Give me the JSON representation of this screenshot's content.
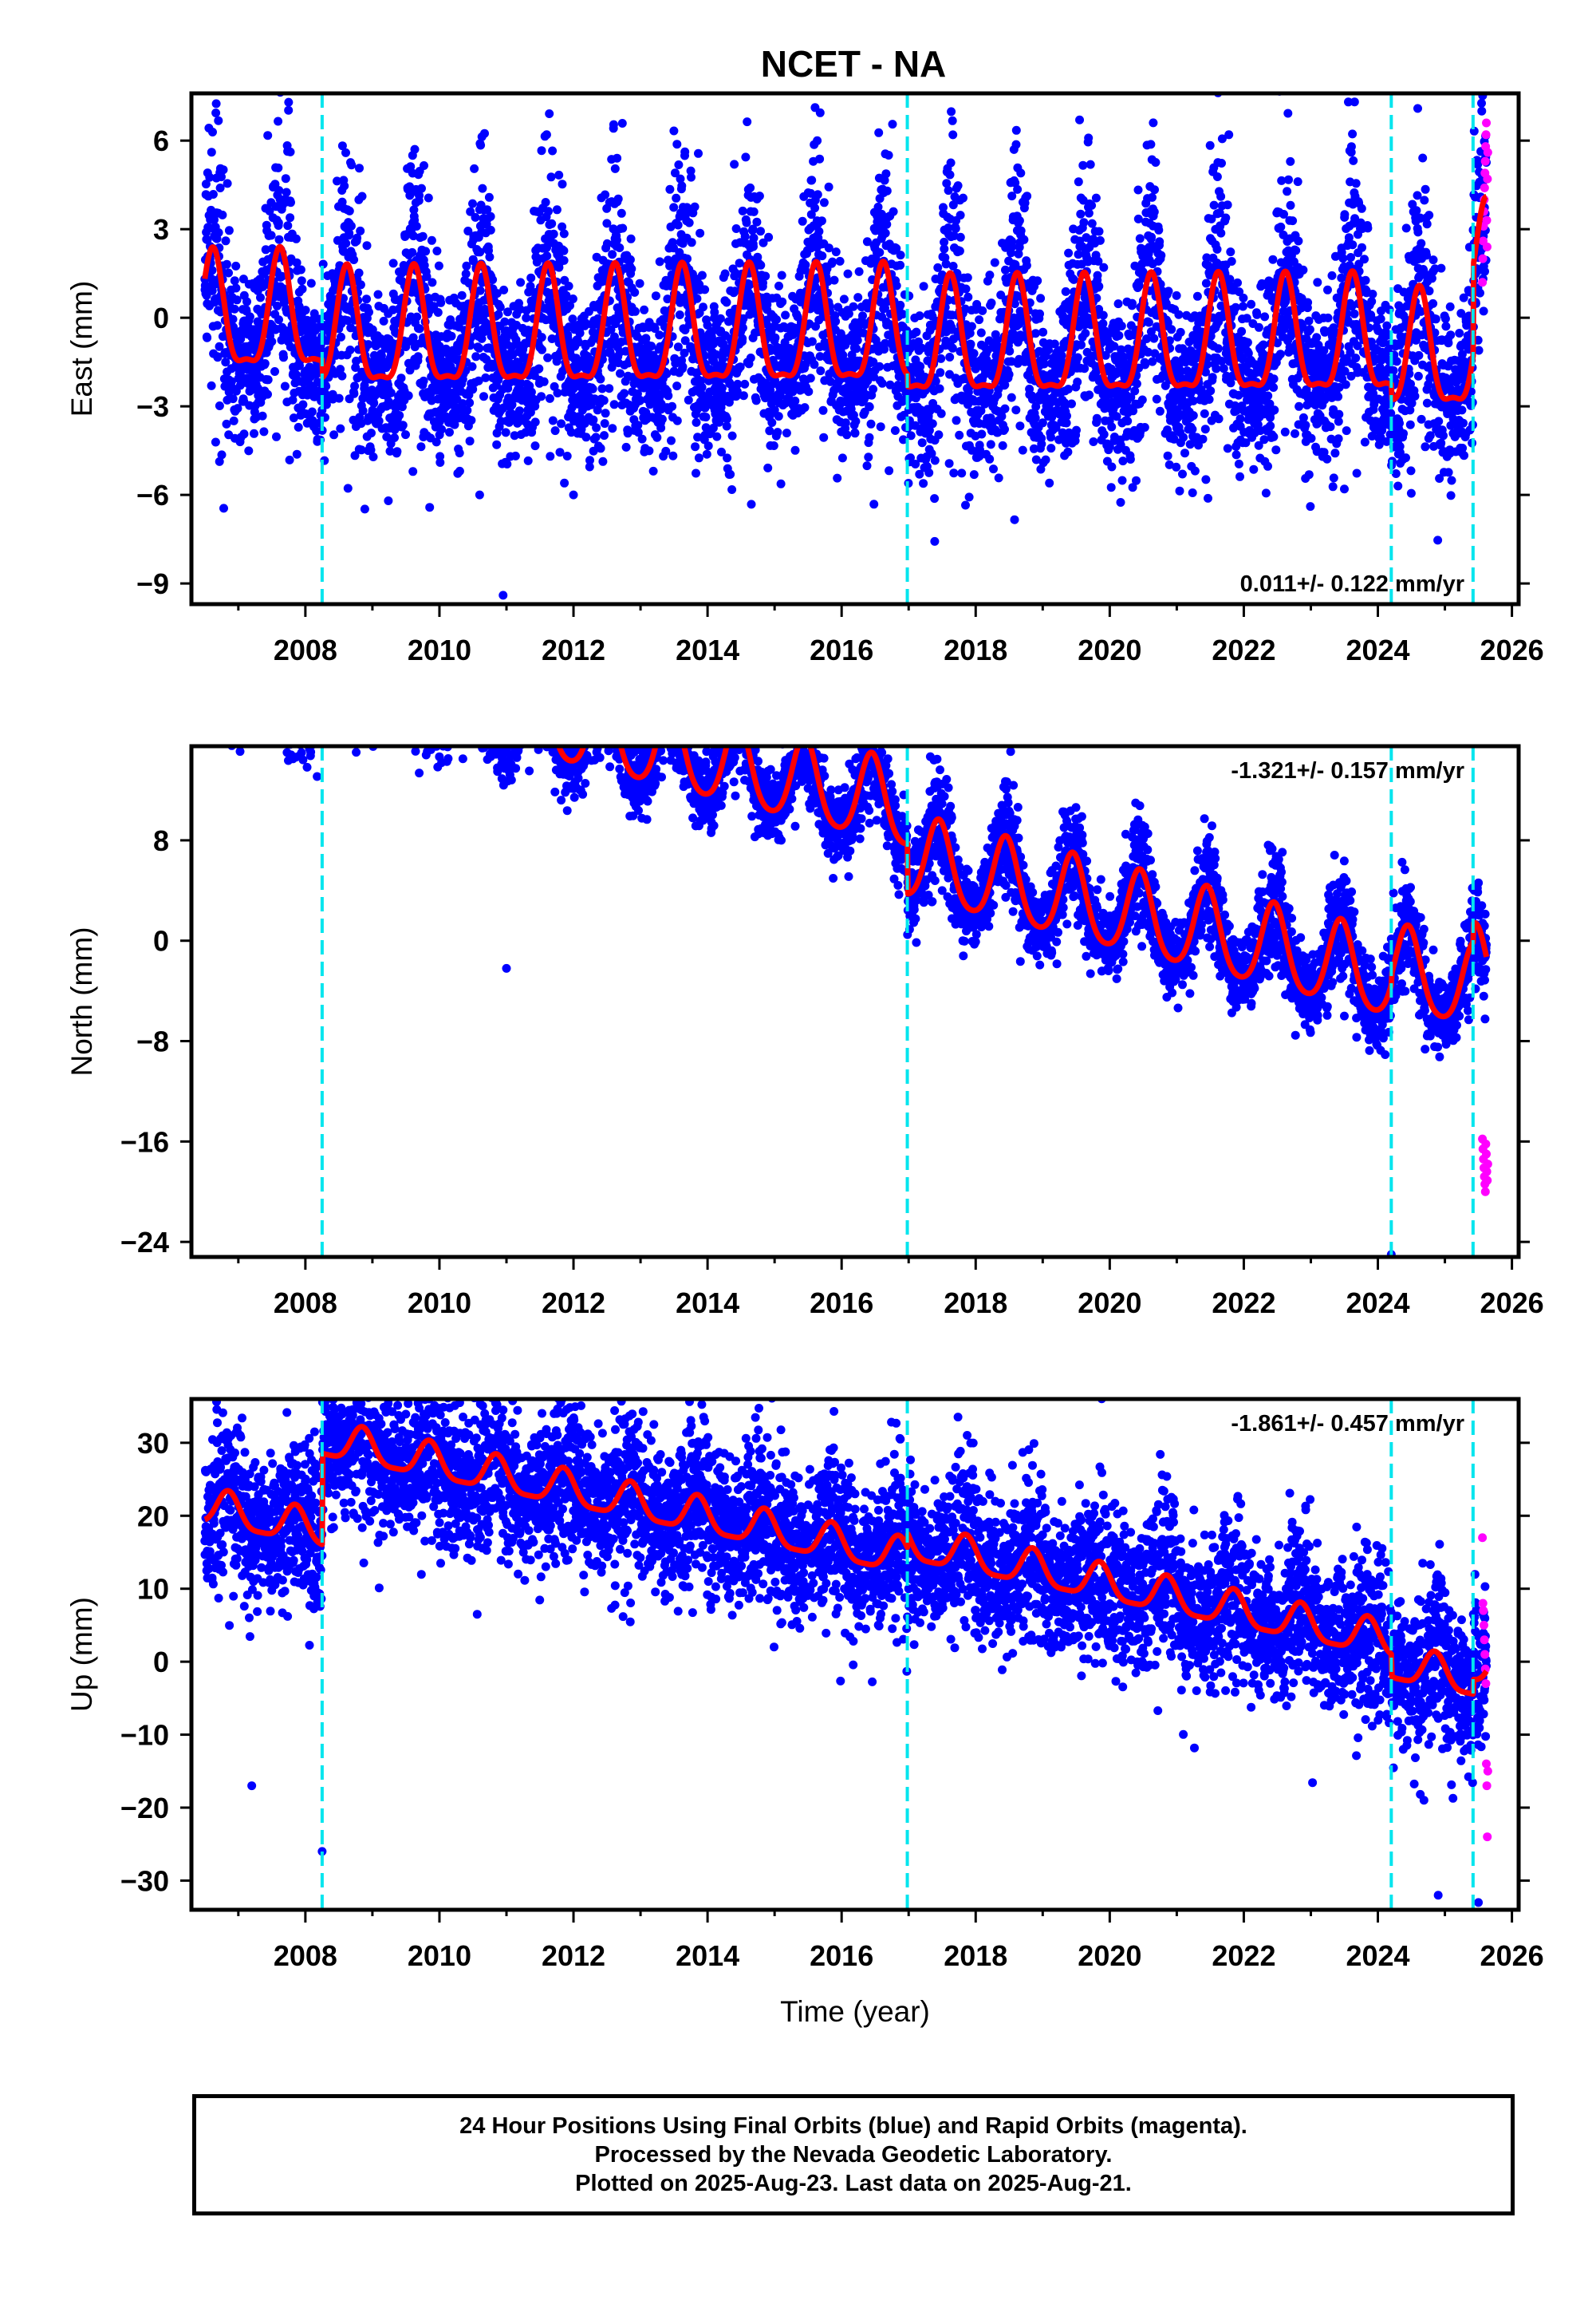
{
  "title": "NCET - NA",
  "colors": {
    "final_orbits": "#0000ff",
    "rapid_orbits": "#ff00ff",
    "model": "#ff0000",
    "equipment_change": "#00e5ee",
    "frame": "#000000"
  },
  "chart_data": [
    {
      "type": "scatter",
      "component": "East",
      "ylabel": "East (mm)",
      "xlabel": "",
      "xlim": [
        2006.3,
        2026.1
      ],
      "ylim": [
        -9.7,
        7.6
      ],
      "yticks": [
        -9,
        -6,
        -3,
        0,
        3,
        6
      ],
      "ytick_labels": [
        "−9",
        "−6",
        "−3",
        "0",
        "3",
        "6"
      ],
      "xticks": [
        2008,
        2010,
        2012,
        2014,
        2016,
        2018,
        2020,
        2022,
        2024,
        2026
      ],
      "rate_label": "0.011+/- 0.122 mm/yr",
      "rate_position": "bottom-right",
      "breaks": [
        2008.25,
        2016.98,
        2024.2,
        2025.42
      ],
      "model": {
        "start": 2006.5,
        "end": 2025.62,
        "offset": 0.0,
        "trend": 0.011,
        "annual_amplitude": 1.9,
        "annual_peak": 0.62,
        "semiannual_amplitude": 0.6,
        "steps": [
          {
            "t": 2008.25,
            "dy": -0.6
          },
          {
            "t": 2016.98,
            "dy": -0.4
          },
          {
            "t": 2024.2,
            "dy": -0.5
          },
          {
            "t": 2025.42,
            "dy": 3.0
          }
        ]
      },
      "scatter": {
        "noise_sigma": 1.2,
        "annual_scatter_boost": 0.9
      },
      "outliers": [
        [
          2007.75,
          7.3
        ],
        [
          2010.95,
          -9.4
        ],
        [
          2010.6,
          -6.0
        ],
        [
          2012.0,
          -6.0
        ],
        [
          2023.5,
          -5.8
        ],
        [
          2024.3,
          -5.7
        ],
        [
          2009.6,
          5.5
        ],
        [
          2011.6,
          6.2
        ],
        [
          2019.55,
          6.7
        ],
        [
          2025.55,
          7.0
        ]
      ],
      "rapid_orbits": {
        "start": 2025.56,
        "end": 2025.64,
        "values": [
          1.2,
          2.0,
          2.6,
          3.1,
          3.6,
          4.0,
          4.4,
          4.9,
          5.3,
          5.8,
          6.2,
          6.6,
          3.3,
          2.4,
          4.7,
          5.6
        ]
      }
    },
    {
      "type": "scatter",
      "component": "North",
      "ylabel": "North (mm)",
      "xlabel": "",
      "xlim": [
        2006.3,
        2026.1
      ],
      "ylim": [
        -25.2,
        15.5
      ],
      "yticks": [
        -24,
        -16,
        -8,
        0,
        8
      ],
      "ytick_labels": [
        "−24",
        "−16",
        "−8",
        "0",
        "8"
      ],
      "xticks": [
        2008,
        2010,
        2012,
        2014,
        2016,
        2018,
        2020,
        2022,
        2024,
        2026
      ],
      "rate_label": "-1.321+/- 0.157 mm/yr",
      "rate_position": "top-right",
      "breaks": [
        2008.25,
        2016.98,
        2024.2,
        2025.42
      ],
      "model": {
        "start": 2006.5,
        "end": 2025.62,
        "offset": 9.3,
        "trend": -1.321,
        "annual_amplitude": 3.3,
        "annual_peak": 0.45,
        "semiannual_amplitude": 0.5,
        "steps": [
          {
            "t": 2008.25,
            "dy": 2.5
          },
          {
            "t": 2016.98,
            "dy": -4.0
          },
          {
            "t": 2024.2,
            "dy": 0.8
          },
          {
            "t": 2025.42,
            "dy": 1.5
          }
        ]
      },
      "scatter": {
        "noise_sigma": 1.3,
        "annual_scatter_boost": 0.8
      },
      "outliers": [
        [
          2010.35,
          14.5
        ],
        [
          2013.8,
          14.0
        ],
        [
          2011.0,
          -2.2
        ],
        [
          2017.5,
          4.0
        ],
        [
          2023.5,
          -6.0
        ],
        [
          2024.2,
          -25.0
        ]
      ],
      "rapid_orbits": {
        "start": 2025.56,
        "end": 2025.64,
        "values": [
          -15.8,
          -16.6,
          -17.4,
          -18.1,
          -18.8,
          -19.4,
          -20.0,
          -16.2,
          -17.0,
          -18.4,
          -19.1,
          -17.8
        ]
      }
    },
    {
      "type": "scatter",
      "component": "Up",
      "ylabel": "Up (mm)",
      "xlabel": "Time (year)",
      "xlim": [
        2006.3,
        2026.1
      ],
      "ylim": [
        -34,
        36
      ],
      "yticks": [
        -30,
        -20,
        -10,
        0,
        10,
        20,
        30
      ],
      "ytick_labels": [
        "−30",
        "−20",
        "−10",
        "0",
        "10",
        "20",
        "30"
      ],
      "xticks": [
        2008,
        2010,
        2012,
        2014,
        2016,
        2018,
        2020,
        2022,
        2024,
        2026
      ],
      "rate_label": "-1.861+/- 0.457 mm/yr",
      "rate_position": "top-right",
      "breaks": [
        2008.25,
        2016.98,
        2024.2,
        2025.42
      ],
      "model": {
        "start": 2006.5,
        "end": 2025.62,
        "offset": 3.4,
        "trend": -1.861,
        "annual_amplitude": 2.4,
        "annual_peak": 0.85,
        "semiannual_amplitude": 0.6,
        "steps": [
          {
            "t": 2008.25,
            "dy": 12.5
          },
          {
            "t": 2016.98,
            "dy": 2.0
          },
          {
            "t": 2024.2,
            "dy": -3.0
          },
          {
            "t": 2025.42,
            "dy": 2.0
          }
        ]
      },
      "scatter": {
        "noise_sigma": 4.3,
        "annual_scatter_boost": 0.5
      },
      "outliers": [
        [
          2010.95,
          34.5
        ],
        [
          2008.35,
          30.5
        ],
        [
          2012.0,
          26.0
        ],
        [
          2006.8,
          25.0
        ],
        [
          2007.3,
          25.3
        ],
        [
          2008.25,
          -26.0
        ],
        [
          2007.2,
          -17.0
        ],
        [
          2024.9,
          -32.0
        ],
        [
          2025.5,
          -33.0
        ]
      ],
      "rapid_orbits": {
        "start": 2025.56,
        "end": 2025.64,
        "values": [
          17.0,
          8.0,
          7.0,
          5.0,
          3.0,
          1.0,
          -1.0,
          -3.0,
          -14.0,
          -17.0,
          -24.0,
          -15.0
        ]
      }
    }
  ],
  "footer": {
    "line1": "24 Hour Positions Using Final Orbits (blue) and Rapid Orbits (magenta).",
    "line2": "Processed by the Nevada Geodetic Laboratory.",
    "line3": "Plotted on 2025-Aug-23. Last data on 2025-Aug-21."
  }
}
